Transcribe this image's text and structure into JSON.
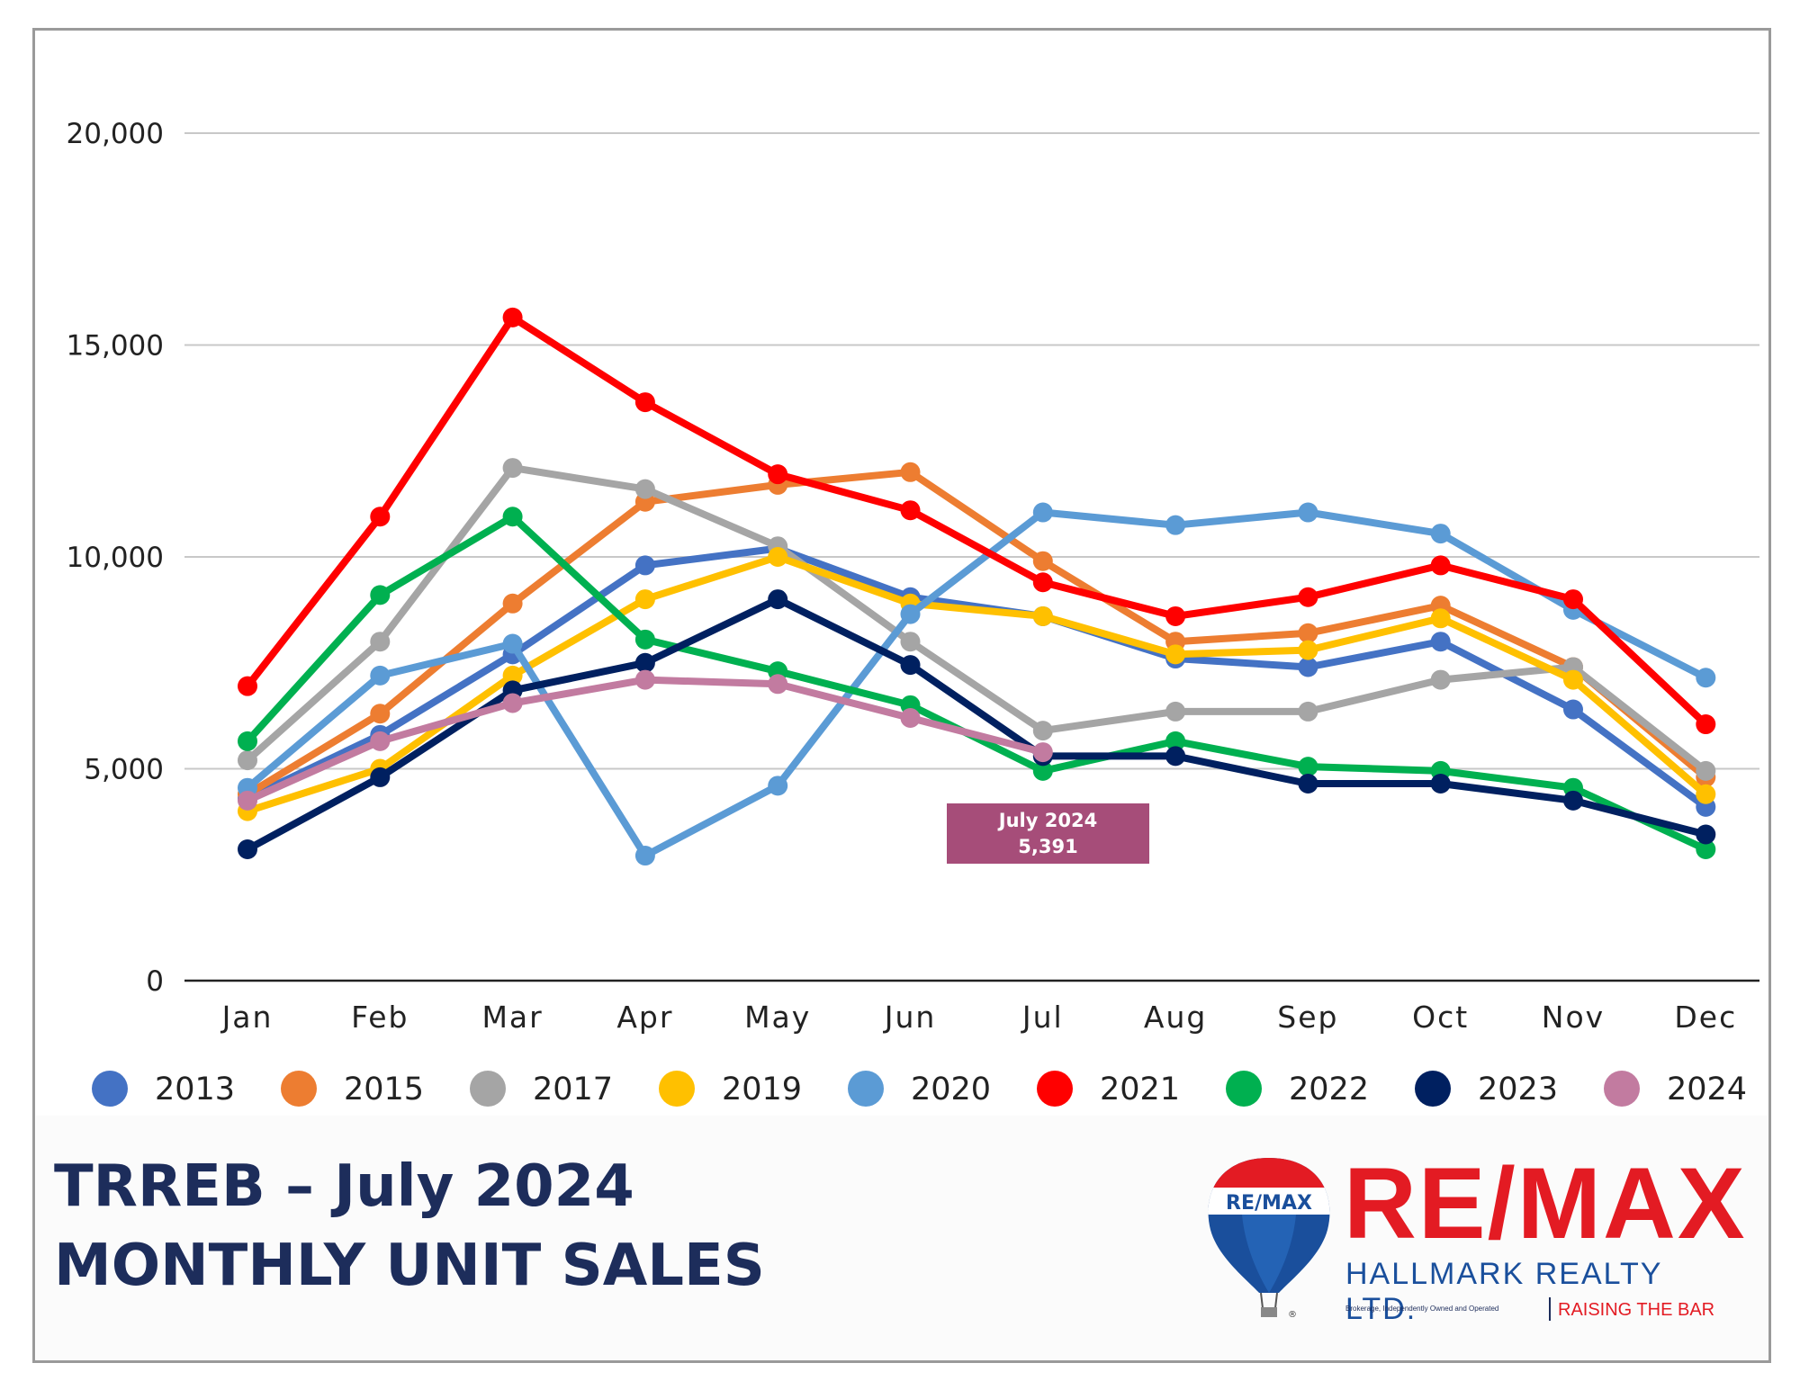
{
  "chart_data": {
    "type": "line",
    "title": "",
    "xlabel": "",
    "ylabel": "",
    "ylim": [
      0,
      20000
    ],
    "yticks": [
      0,
      5000,
      10000,
      15000,
      20000
    ],
    "ytick_labels": [
      "0",
      "5,000",
      "10,000",
      "15,000",
      "20,000"
    ],
    "categories": [
      "Jan",
      "Feb",
      "Mar",
      "Apr",
      "May",
      "Jun",
      "Jul",
      "Aug",
      "Sep",
      "Oct",
      "Nov",
      "Dec"
    ],
    "grid": "horizontal",
    "legend_position": "bottom",
    "series": [
      {
        "name": "2013",
        "color": "#4472c4",
        "values": [
          4300,
          5800,
          7700,
          9800,
          10200,
          9050,
          8600,
          7600,
          7400,
          8000,
          6400,
          4100
        ]
      },
      {
        "name": "2015",
        "color": "#ed7d31",
        "values": [
          4400,
          6300,
          8900,
          11300,
          11700,
          12000,
          9900,
          8000,
          8200,
          8850,
          7400,
          4800
        ]
      },
      {
        "name": "2017",
        "color": "#a5a5a5",
        "values": [
          5200,
          8000,
          12100,
          11600,
          10250,
          8000,
          5900,
          6350,
          6350,
          7100,
          7400,
          4950
        ]
      },
      {
        "name": "2019",
        "color": "#ffc000",
        "values": [
          4000,
          5000,
          7200,
          9000,
          10000,
          8900,
          8600,
          7700,
          7800,
          8550,
          7100,
          4400
        ]
      },
      {
        "name": "2020",
        "color": "#5b9bd5",
        "values": [
          4550,
          7200,
          7950,
          2950,
          4600,
          8650,
          11050,
          10750,
          11050,
          10550,
          8750,
          7150
        ]
      },
      {
        "name": "2021",
        "color": "#ff0000",
        "values": [
          6950,
          10950,
          15650,
          13650,
          11950,
          11100,
          9400,
          8600,
          9050,
          9800,
          9000,
          6050
        ]
      },
      {
        "name": "2022",
        "color": "#00b050",
        "values": [
          5650,
          9100,
          10950,
          8050,
          7300,
          6500,
          4950,
          5650,
          5050,
          4950,
          4550,
          3100
        ]
      },
      {
        "name": "2023",
        "color": "#002060",
        "values": [
          3100,
          4800,
          6850,
          7500,
          9000,
          7450,
          5300,
          5300,
          4650,
          4650,
          4250,
          3450
        ]
      },
      {
        "name": "2024",
        "color": "#c27ba0",
        "values": [
          4250,
          5650,
          6550,
          7100,
          7000,
          6200,
          5391,
          null,
          null,
          null,
          null,
          null
        ]
      }
    ],
    "annotation": {
      "line1": "July 2024",
      "line2": "5,391",
      "color": "#a64d79"
    }
  },
  "title": {
    "line1": "TRREB – July 2024",
    "line2": "MONTHLY UNIT SALES"
  },
  "logo": {
    "balloon_text": "RE/MAX",
    "brand": "RE/MAX",
    "company": "HALLMARK REALTY LTD.",
    "brokerage": "Brokerage, Independently Owned and Operated",
    "slogan": "RAISING THE BAR",
    "registered": "®"
  },
  "colors": {
    "title": "#1d2d5b",
    "brand_red": "#e31b23",
    "brand_blue": "#1a4f9c"
  }
}
